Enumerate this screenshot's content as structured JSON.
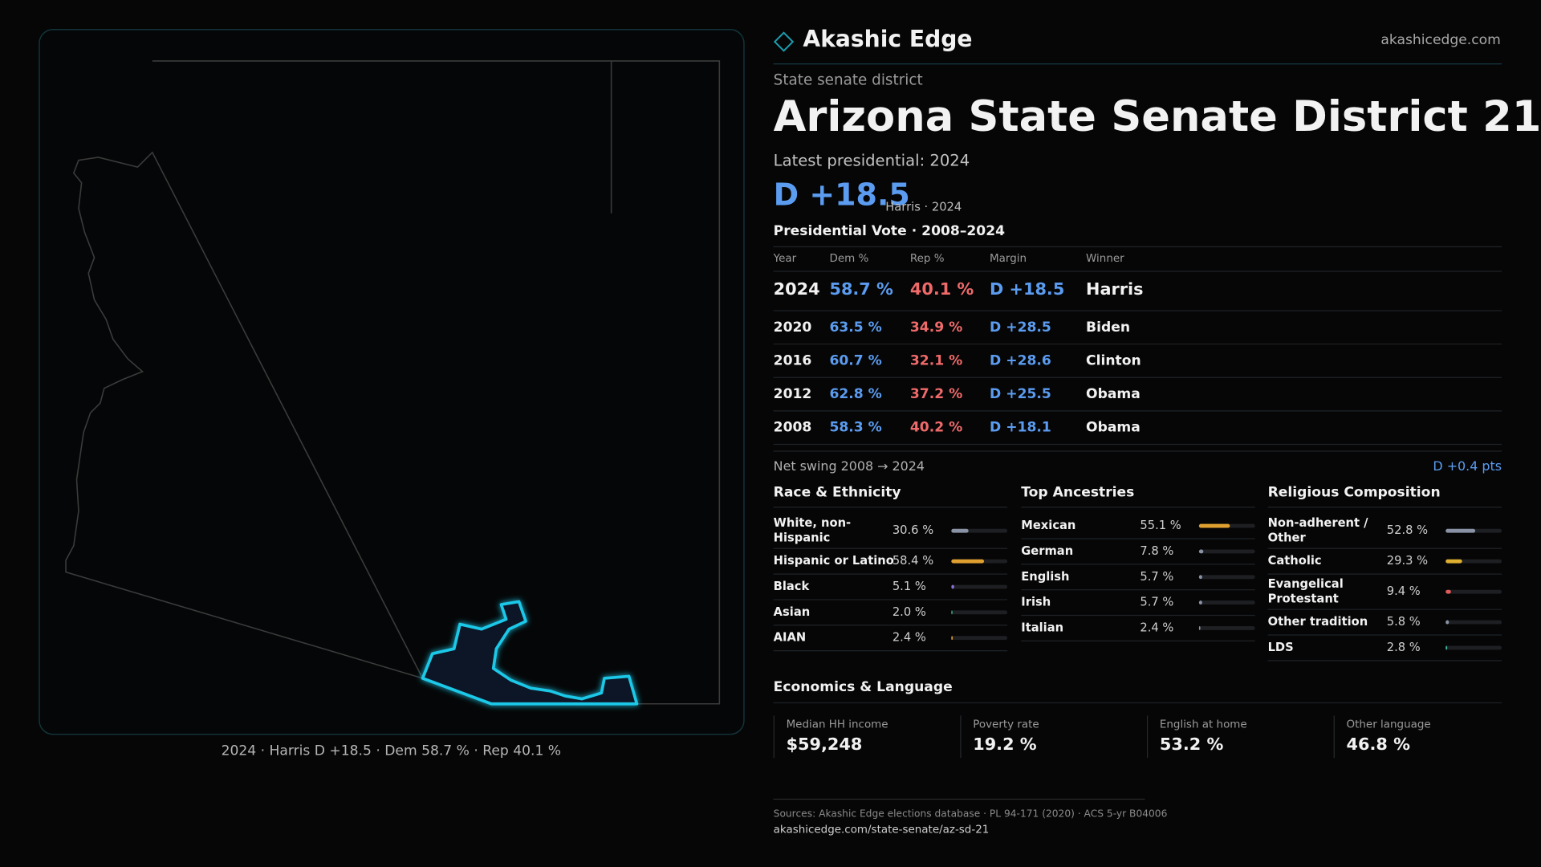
{
  "header": {
    "brand": "Akashic Edge",
    "site": "akashicedge.com"
  },
  "district": {
    "kind": "State senate district",
    "name": "Arizona State Senate District 21",
    "latest": "Latest presidential: 2024",
    "margin": "D +18.5",
    "margin_note": "Harris · 2024"
  },
  "vote_table": {
    "title": "Presidential Vote · 2008–2024",
    "columns": [
      "Year",
      "Dem %",
      "Rep %",
      "Margin",
      "Winner"
    ],
    "rows": [
      [
        "2024",
        "58.7 %",
        "40.1 %",
        "D +18.5",
        "Harris"
      ],
      [
        "2020",
        "63.5 %",
        "34.9 %",
        "D +28.5",
        "Biden"
      ],
      [
        "2016",
        "60.7 %",
        "32.1 %",
        "D +28.6",
        "Clinton"
      ],
      [
        "2012",
        "62.8 %",
        "37.2 %",
        "D +25.5",
        "Obama"
      ],
      [
        "2008",
        "58.3 %",
        "40.2 %",
        "D +18.1",
        "Obama"
      ]
    ]
  },
  "swing": {
    "label": "Net swing 2008 → 2024",
    "value": "D +0.4 pts"
  },
  "panels": [
    {
      "title": "Race & Ethnicity",
      "labels": [
        "White, non-Hispanic",
        "Hispanic or Latino",
        "Black",
        "Asian",
        "AIAN"
      ],
      "values": [
        30.6,
        58.4,
        5.1,
        2.0,
        2.4
      ],
      "value_labels": [
        "30.6 %",
        "58.4 %",
        "5.1 %",
        "2.0 %",
        "2.4 %"
      ],
      "colors": [
        "#8a93a6",
        "#e0a030",
        "#8b6fd6",
        "#3fb98a",
        "#e0a030"
      ]
    },
    {
      "title": "Top Ancestries",
      "labels": [
        "Mexican",
        "German",
        "English",
        "Irish",
        "Italian"
      ],
      "values": [
        55.1,
        7.8,
        5.7,
        5.7,
        2.4
      ],
      "value_labels": [
        "55.1 %",
        "7.8 %",
        "5.7 %",
        "5.7 %",
        "2.4 %"
      ],
      "colors": [
        "#e0a030",
        "#8a93a6",
        "#8a93a6",
        "#8a93a6",
        "#8a93a6"
      ]
    },
    {
      "title": "Religious Composition",
      "labels": [
        "Non-adherent / Other",
        "Catholic",
        "Evangelical Protestant",
        "Other tradition",
        "LDS"
      ],
      "values": [
        52.8,
        29.3,
        9.4,
        5.8,
        2.8
      ],
      "value_labels": [
        "52.8 %",
        "29.3 %",
        "9.4 %",
        "5.8 %",
        "2.8 %"
      ],
      "colors": [
        "#8a93a6",
        "#e0b030",
        "#e05a5a",
        "#8a93a6",
        "#3fb9a0"
      ]
    }
  ],
  "economics": {
    "title": "Economics & Language",
    "items": [
      {
        "label": "Median HH income",
        "value": "$59,248"
      },
      {
        "label": "Poverty rate",
        "value": "19.2 %"
      },
      {
        "label": "English at home",
        "value": "53.2 %"
      },
      {
        "label": "Other language",
        "value": "46.8 %"
      }
    ]
  },
  "map_caption": "2024 · Harris D +18.5 · Dem 58.7 % · Rep 40.1 %",
  "sources": "Sources: Akashic Edge elections database · PL 94-171 (2020) · ACS 5-yr B04006",
  "url": "akashicedge.com/state-senate/az-sd-21"
}
